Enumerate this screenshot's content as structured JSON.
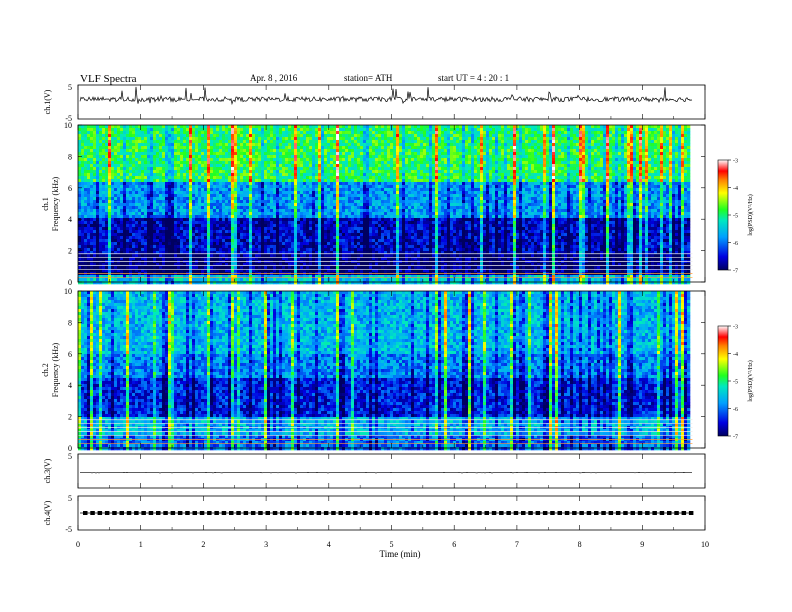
{
  "header": {
    "title": "VLF Spectra",
    "date": "Apr. 8 , 2016",
    "station": "station= ATH",
    "start": "start UT = 4 : 20 : 1"
  },
  "chart_data": {
    "type": "heatmap",
    "title": "VLF Spectra",
    "xlabel": "Time (min)",
    "xlim": [
      0,
      10
    ],
    "xticks": [
      0,
      1,
      2,
      3,
      4,
      5,
      6,
      7,
      8,
      9,
      10
    ],
    "data_end_min": 9.8,
    "panels": [
      {
        "id": "ch1v",
        "kind": "waveform",
        "ylabel": "ch.1(V)",
        "ylim": [
          -5,
          5
        ],
        "yticks": [
          5,
          -5
        ],
        "level": 0.8,
        "noise": "high"
      },
      {
        "id": "ch1f",
        "kind": "spectrogram",
        "ylabel_top": "ch.1",
        "ylabel": "Frequency (kHz)",
        "ylim": [
          0,
          10
        ],
        "yticks": [
          0,
          2,
          4,
          6,
          8,
          10
        ],
        "colorbar": {
          "label": "log(PSD)(V²/Hz)",
          "range": [
            -7,
            -3
          ],
          "ticks": [
            -3,
            -4,
            -5,
            -6,
            -7
          ]
        },
        "bands": [
          {
            "from": 0,
            "to": 0.5,
            "level": -5.5,
            "note": "sferic / line harmonics"
          },
          {
            "from": 0.5,
            "to": 1.8,
            "level": -6.9,
            "note": "narrow horizontal lines"
          },
          {
            "from": 1.8,
            "to": 4.2,
            "level": -6.6
          },
          {
            "from": 4.2,
            "to": 6.5,
            "level": -5.8
          },
          {
            "from": 6.5,
            "to": 10,
            "level": -4.9
          }
        ]
      },
      {
        "id": "ch2f",
        "kind": "spectrogram",
        "ylabel_top": "ch.2",
        "ylabel": "Frequency (kHz)",
        "ylim": [
          0,
          10
        ],
        "yticks": [
          0,
          2,
          4,
          6,
          8,
          10
        ],
        "colorbar": {
          "label": "log(PSD)(V²/Hz)",
          "range": [
            -7,
            -3
          ],
          "ticks": [
            -3,
            -4,
            -5,
            -6,
            -7
          ]
        },
        "bands": [
          {
            "from": 0,
            "to": 1.0,
            "level": -6.0
          },
          {
            "from": 1.0,
            "to": 2.0,
            "level": -5.6
          },
          {
            "from": 2.0,
            "to": 4.5,
            "level": -6.4
          },
          {
            "from": 4.5,
            "to": 6.0,
            "level": -5.9
          },
          {
            "from": 6.0,
            "to": 10,
            "level": -5.6
          }
        ]
      },
      {
        "id": "ch3v",
        "kind": "waveform",
        "ylabel": "ch.3(V)",
        "ylim": [
          -5,
          5
        ],
        "yticks": [
          5
        ],
        "level": -0.5,
        "noise": "low"
      },
      {
        "id": "ch4v",
        "kind": "waveform",
        "ylabel": "ch.4(V)",
        "ylim": [
          -5,
          5
        ],
        "yticks": [
          5,
          -5
        ],
        "level": 0.0,
        "noise": "pulses"
      }
    ]
  }
}
